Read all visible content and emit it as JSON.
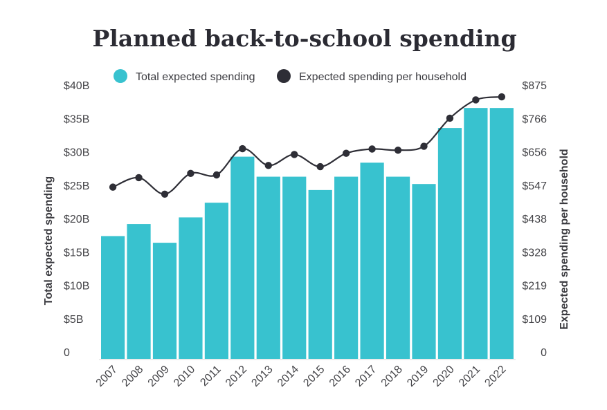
{
  "chart_data": {
    "type": "bar",
    "title": "Planned back-to-school spending",
    "categories": [
      "2007",
      "2008",
      "2009",
      "2010",
      "2011",
      "2012",
      "2013",
      "2014",
      "2015",
      "2016",
      "2017",
      "2018",
      "2019",
      "2020",
      "2021",
      "2022"
    ],
    "series": [
      {
        "name": "Total expected spending",
        "type": "bar",
        "axis": "left",
        "color": "#38c2cf",
        "values": [
          18.4,
          20.2,
          17.4,
          21.2,
          23.4,
          30.3,
          27.3,
          27.3,
          25.3,
          27.3,
          29.4,
          27.3,
          26.2,
          34.6,
          37.6,
          37.6
        ]
      },
      {
        "name": "Expected spending per household",
        "type": "line",
        "axis": "right",
        "color": "#2e2e36",
        "values": [
          563,
          594,
          540,
          608,
          603,
          689,
          634,
          670,
          630,
          674,
          688,
          684,
          697,
          789,
          849,
          859
        ]
      }
    ],
    "ylabel_left": "Total expected spending",
    "ylabel_right": "Expected spending per household",
    "ylim_left": [
      0,
      40
    ],
    "ylim_right": [
      0,
      875
    ],
    "yticks_left": [
      "0",
      "$5B",
      "$10B",
      "$15B",
      "$20B",
      "$25B",
      "$30B",
      "$35B",
      "$40B"
    ],
    "yticks_right": [
      "0",
      "$109",
      "$219",
      "$328",
      "$438",
      "$547",
      "$656",
      "$766",
      "$875"
    ],
    "legend_position": "top-center",
    "grid": false
  }
}
